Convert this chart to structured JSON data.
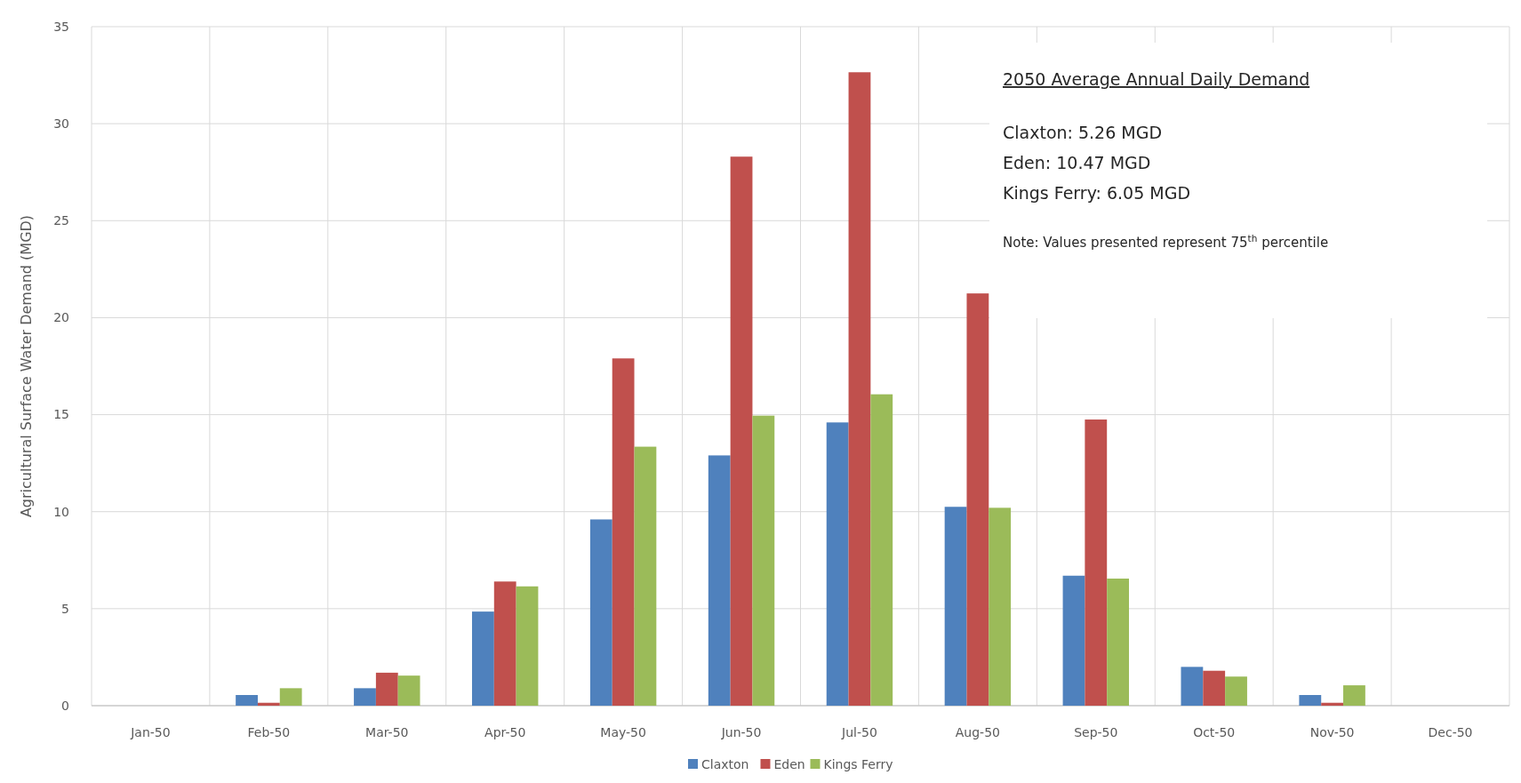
{
  "chart_data": {
    "type": "bar",
    "ylabel": "Agricultural Surface Water Demand (MGD)",
    "categories": [
      "Jan-50",
      "Feb-50",
      "Mar-50",
      "Apr-50",
      "May-50",
      "Jun-50",
      "Jul-50",
      "Aug-50",
      "Sep-50",
      "Oct-50",
      "Nov-50",
      "Dec-50"
    ],
    "series": [
      {
        "name": "Claxton",
        "color": "#4f81bd",
        "values": [
          0,
          0.55,
          0.9,
          4.85,
          9.6,
          12.9,
          14.6,
          10.25,
          6.7,
          2.0,
          0.55,
          0
        ]
      },
      {
        "name": "Eden",
        "color": "#c0504d",
        "values": [
          0,
          0.15,
          1.7,
          6.4,
          17.9,
          28.3,
          32.65,
          21.25,
          14.75,
          1.8,
          0.15,
          0
        ]
      },
      {
        "name": "Kings Ferry",
        "color": "#9bbb59",
        "values": [
          0,
          0.9,
          1.55,
          6.15,
          13.35,
          14.95,
          16.05,
          10.2,
          6.55,
          1.5,
          1.05,
          0
        ]
      }
    ],
    "ylim": [
      0,
      35
    ],
    "yticks": [
      0,
      5,
      10,
      15,
      20,
      25,
      30,
      35
    ],
    "grid": true,
    "legend": "bottom",
    "annotations": [
      "2050 Average Annual Daily Demand",
      "Claxton: 5.26 MGD",
      "Eden: 10.47 MGD",
      "Kings Ferry: 6.05 MGD",
      "Note: Values presented represent 75$^{th}$ percentile"
    ]
  }
}
